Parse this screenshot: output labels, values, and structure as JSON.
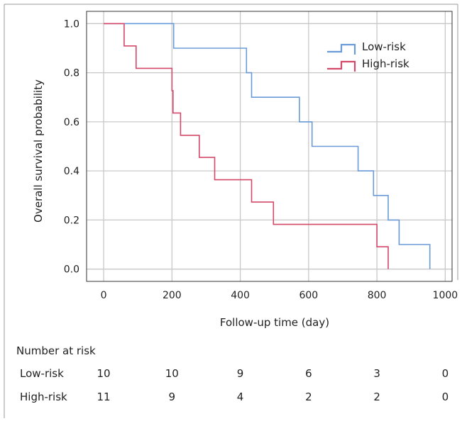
{
  "chart_data": {
    "type": "line",
    "subtype": "kaplan-meier step",
    "title": "",
    "xlabel": "Follow-up time (day)",
    "ylabel": "Overall survival probability",
    "xlim": [
      -50,
      1020
    ],
    "ylim": [
      -0.05,
      1.05
    ],
    "x_ticks": [
      0,
      200,
      400,
      600,
      800,
      1000
    ],
    "x_tick_labels": [
      "0",
      "200",
      "400",
      "600",
      "800",
      "1000"
    ],
    "y_ticks": [
      0.0,
      0.2,
      0.4,
      0.6,
      0.8,
      1.0
    ],
    "y_tick_labels": [
      "0.0",
      "0.2",
      "0.4",
      "0.6",
      "0.8",
      "1.0"
    ],
    "grid": true,
    "legend_position": "top-right",
    "series": [
      {
        "name": "Low-risk",
        "color": "#6a9bd8",
        "points": [
          [
            0,
            1.0
          ],
          [
            205,
            1.0
          ],
          [
            205,
            0.9
          ],
          [
            418,
            0.9
          ],
          [
            418,
            0.8
          ],
          [
            433,
            0.8
          ],
          [
            433,
            0.7
          ],
          [
            573,
            0.7
          ],
          [
            573,
            0.6
          ],
          [
            610,
            0.6
          ],
          [
            610,
            0.5
          ],
          [
            745,
            0.5
          ],
          [
            745,
            0.4
          ],
          [
            790,
            0.4
          ],
          [
            790,
            0.3
          ],
          [
            833,
            0.3
          ],
          [
            833,
            0.2
          ],
          [
            865,
            0.2
          ],
          [
            865,
            0.1
          ],
          [
            955,
            0.1
          ],
          [
            955,
            0.0
          ]
        ]
      },
      {
        "name": "High-risk",
        "color": "#d44869",
        "points": [
          [
            0,
            1.0
          ],
          [
            60,
            1.0
          ],
          [
            60,
            0.909
          ],
          [
            95,
            0.909
          ],
          [
            95,
            0.818
          ],
          [
            200,
            0.818
          ],
          [
            200,
            0.727
          ],
          [
            203,
            0.727
          ],
          [
            203,
            0.636
          ],
          [
            225,
            0.636
          ],
          [
            225,
            0.545
          ],
          [
            280,
            0.545
          ],
          [
            280,
            0.455
          ],
          [
            325,
            0.455
          ],
          [
            325,
            0.364
          ],
          [
            433,
            0.364
          ],
          [
            433,
            0.273
          ],
          [
            497,
            0.273
          ],
          [
            497,
            0.182
          ],
          [
            800,
            0.182
          ],
          [
            800,
            0.091
          ],
          [
            833,
            0.091
          ],
          [
            833,
            0.0
          ]
        ]
      }
    ]
  },
  "risk_table": {
    "title": "Number at risk",
    "rows": [
      {
        "label": "Low-risk",
        "values": [
          "10",
          "10",
          "9",
          "6",
          "3",
          "0"
        ]
      },
      {
        "label": "High-risk",
        "values": [
          "11",
          "9",
          "4",
          "2",
          "2",
          "0"
        ]
      }
    ]
  }
}
